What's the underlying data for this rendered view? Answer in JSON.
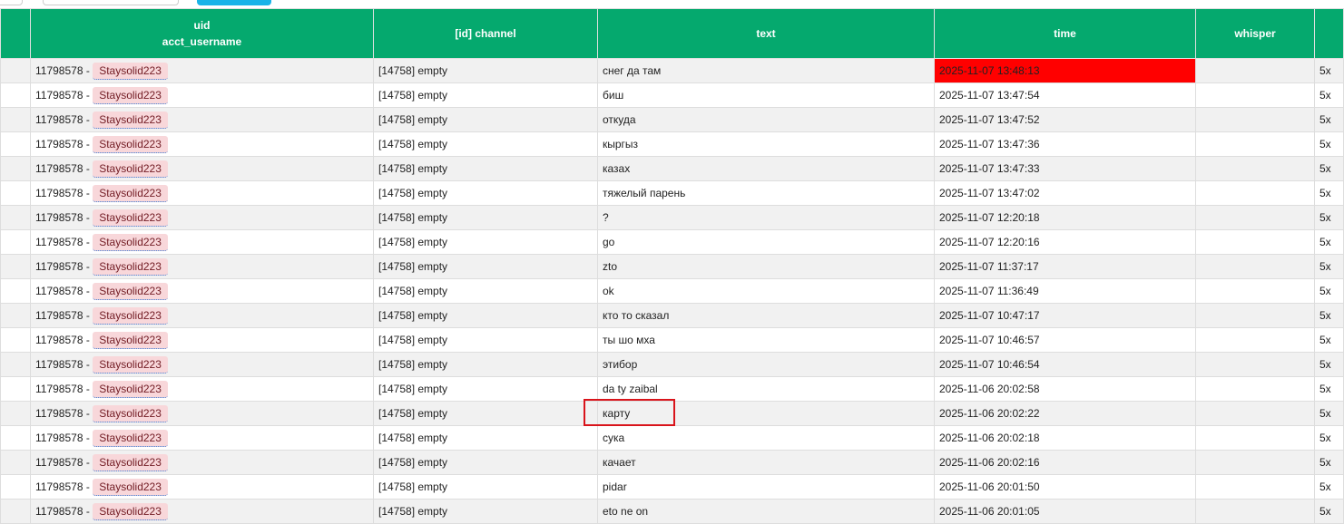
{
  "columns": [
    "",
    "uid\nacct_username",
    "[id] channel",
    "text",
    "time",
    "whisper",
    ""
  ],
  "header": {
    "uid": "uid",
    "acct_username": "acct_username",
    "channel": "[id] channel",
    "text": "text",
    "time": "time",
    "whisper": "whisper"
  },
  "highlight_color": "#ff0000",
  "rows": [
    {
      "uid": "11798578 -",
      "user": "Staysolid223",
      "channel": "[14758] empty",
      "text": "снег да там",
      "time": "2025-11-07 13:48:13",
      "last": "5x"
    },
    {
      "uid": "11798578 -",
      "user": "Staysolid223",
      "channel": "[14758] empty",
      "text": "биш",
      "time": "2025-11-07 13:47:54",
      "last": "5x"
    },
    {
      "uid": "11798578 -",
      "user": "Staysolid223",
      "channel": "[14758] empty",
      "text": "откуда",
      "time": "2025-11-07 13:47:52",
      "last": "5x"
    },
    {
      "uid": "11798578 -",
      "user": "Staysolid223",
      "channel": "[14758] empty",
      "text": "кыргыз",
      "time": "2025-11-07 13:47:36",
      "last": "5x"
    },
    {
      "uid": "11798578 -",
      "user": "Staysolid223",
      "channel": "[14758] empty",
      "text": "казах",
      "time": "2025-11-07 13:47:33",
      "last": "5x"
    },
    {
      "uid": "11798578 -",
      "user": "Staysolid223",
      "channel": "[14758] empty",
      "text": "тяжелый парень",
      "time": "2025-11-07 13:47:02",
      "last": "5x"
    },
    {
      "uid": "11798578 -",
      "user": "Staysolid223",
      "channel": "[14758] empty",
      "text": "?",
      "time": "2025-11-07 12:20:18",
      "last": "5x"
    },
    {
      "uid": "11798578 -",
      "user": "Staysolid223",
      "channel": "[14758] empty",
      "text": "go",
      "time": "2025-11-07 12:20:16",
      "last": "5x"
    },
    {
      "uid": "11798578 -",
      "user": "Staysolid223",
      "channel": "[14758] empty",
      "text": "zto",
      "time": "2025-11-07 11:37:17",
      "last": "5x"
    },
    {
      "uid": "11798578 -",
      "user": "Staysolid223",
      "channel": "[14758] empty",
      "text": "ok",
      "time": "2025-11-07 11:36:49",
      "last": "5x"
    },
    {
      "uid": "11798578 -",
      "user": "Staysolid223",
      "channel": "[14758] empty",
      "text": "кто то сказал",
      "time": "2025-11-07 10:47:17",
      "last": "5x"
    },
    {
      "uid": "11798578 -",
      "user": "Staysolid223",
      "channel": "[14758] empty",
      "text": "ты шо мха",
      "time": "2025-11-07 10:46:57",
      "last": "5x"
    },
    {
      "uid": "11798578 -",
      "user": "Staysolid223",
      "channel": "[14758] empty",
      "text": "этибор",
      "time": "2025-11-07 10:46:54",
      "last": "5x"
    },
    {
      "uid": "11798578 -",
      "user": "Staysolid223",
      "channel": "[14758] empty",
      "text": "da ty zaibal",
      "time": "2025-11-06 20:02:58",
      "last": "5x"
    },
    {
      "uid": "11798578 -",
      "user": "Staysolid223",
      "channel": "[14758] empty",
      "text": "карту",
      "time": "2025-11-06 20:02:22",
      "last": "5x"
    },
    {
      "uid": "11798578 -",
      "user": "Staysolid223",
      "channel": "[14758] empty",
      "text": "сука",
      "time": "2025-11-06 20:02:18",
      "last": "5x"
    },
    {
      "uid": "11798578 -",
      "user": "Staysolid223",
      "channel": "[14758] empty",
      "text": "качает",
      "time": "2025-11-06 20:02:16",
      "last": "5x"
    },
    {
      "uid": "11798578 -",
      "user": "Staysolid223",
      "channel": "[14758] empty",
      "text": "pidar",
      "time": "2025-11-06 20:01:50",
      "last": "5x"
    },
    {
      "uid": "11798578 -",
      "user": "Staysolid223",
      "channel": "[14758] empty",
      "text": "eto ne on",
      "time": "2025-11-06 20:01:05",
      "last": "5x"
    }
  ]
}
